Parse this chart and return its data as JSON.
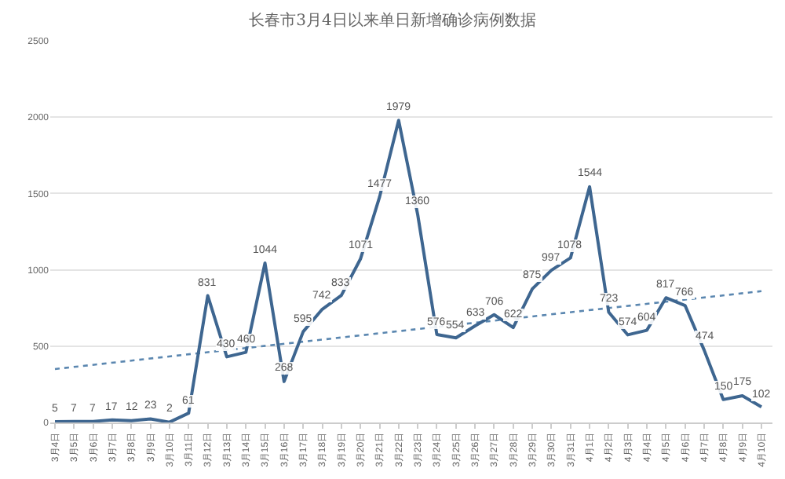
{
  "chart_data": {
    "type": "line",
    "title": "长春市3月4日以来单日新增确诊病例数据",
    "categories": [
      "3月4日",
      "3月5日",
      "3月6日",
      "3月7日",
      "3月8日",
      "3月9日",
      "3月10日",
      "3月11日",
      "3月12日",
      "3月13日",
      "3月14日",
      "3月15日",
      "3月16日",
      "3月17日",
      "3月18日",
      "3月19日",
      "3月20日",
      "3月21日",
      "3月22日",
      "3月23日",
      "3月24日",
      "3月25日",
      "3月26日",
      "3月27日",
      "3月28日",
      "3月29日",
      "3月30日",
      "3月31日",
      "4月1日",
      "4月2日",
      "4月3日",
      "4月4日",
      "4月5日",
      "4月6日",
      "4月7日",
      "4月8日",
      "4月9日",
      "4月10日"
    ],
    "series": [
      {
        "color": "#3e6690",
        "value_labels": [
          "5",
          "7",
          "7",
          "17",
          "12",
          "23",
          "2",
          "61",
          "831",
          "430",
          "460",
          "1044",
          "268",
          "595",
          "742",
          "833",
          "1071",
          "1477",
          "1979",
          "1360",
          "576",
          "554",
          "633",
          "706",
          "622",
          "875",
          "997",
          "1078",
          "1544",
          "723",
          "574",
          "604",
          "817",
          "766",
          "474",
          "150",
          "175",
          "102"
        ],
        "values": [
          5,
          7,
          7,
          17,
          12,
          23,
          2,
          61,
          831,
          430,
          460,
          1044,
          268,
          595,
          742,
          833,
          1071,
          1477,
          1979,
          1360,
          576,
          554,
          633,
          706,
          622,
          875,
          997,
          1078,
          1544,
          723,
          574,
          604,
          817,
          766,
          474,
          150,
          175,
          102
        ]
      },
      {
        "type": "line",
        "line_style": "dotted",
        "color": "#5b87b0",
        "x": [
          "3月4日",
          "4月10日"
        ],
        "values": [
          350,
          860
        ]
      }
    ],
    "ylim": [
      0,
      2500
    ],
    "yticks": [
      0,
      500,
      1000,
      1500,
      2000,
      2500
    ],
    "grid": "y"
  }
}
